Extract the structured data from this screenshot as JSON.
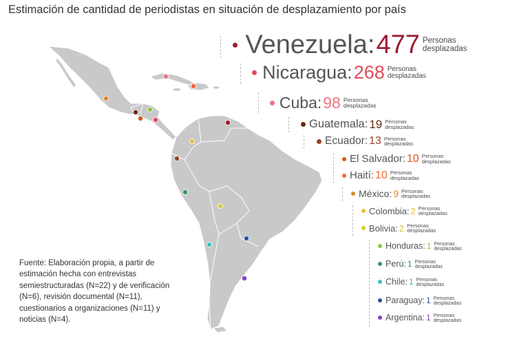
{
  "title": "Estimación de cantidad de periodistas en situación de desplazamiento por país",
  "source_note": "Fuente: Elaboración propia, a partir de estimación hecha con entrevistas semiestructuradas (N=22) y de verificación (N=6), revisión documental (N=11), cuestionarios a organizaciones (N=11) y noticias (N=4).",
  "unit_line1": "Personas",
  "unit_line2": "desplazadas",
  "map_colors": {
    "land": "#c9c9c9",
    "border": "#ffffff"
  },
  "countries": [
    {
      "name": "Venezuela",
      "count": 477,
      "color": "#9e1b32"
    },
    {
      "name": "Nicaragua",
      "count": 268,
      "color": "#e24a5a"
    },
    {
      "name": "Cuba",
      "count": 98,
      "color": "#ee7182"
    },
    {
      "name": "Guatemala",
      "count": 19,
      "color": "#6b2a14"
    },
    {
      "name": "Ecuador",
      "count": 13,
      "color": "#9a4526"
    },
    {
      "name": "El Salvador",
      "count": 10,
      "color": "#d9581c"
    },
    {
      "name": "Haití",
      "count": 10,
      "color": "#f26a3b"
    },
    {
      "name": "México",
      "count": 9,
      "color": "#e0892b"
    },
    {
      "name": "Colombia",
      "count": 2,
      "color": "#e9bf3a"
    },
    {
      "name": "Bolivia",
      "count": 2,
      "color": "#cfcf34"
    },
    {
      "name": "Honduras",
      "count": 1,
      "color": "#8dc63f"
    },
    {
      "name": "Perú",
      "count": 1,
      "color": "#2e9a55"
    },
    {
      "name": "Chile",
      "count": 1,
      "color": "#39c2bf"
    },
    {
      "name": "Paraguay",
      "count": 1,
      "color": "#2456a6"
    },
    {
      "name": "Argentina",
      "count": 1,
      "color": "#8a3fc7"
    }
  ]
}
